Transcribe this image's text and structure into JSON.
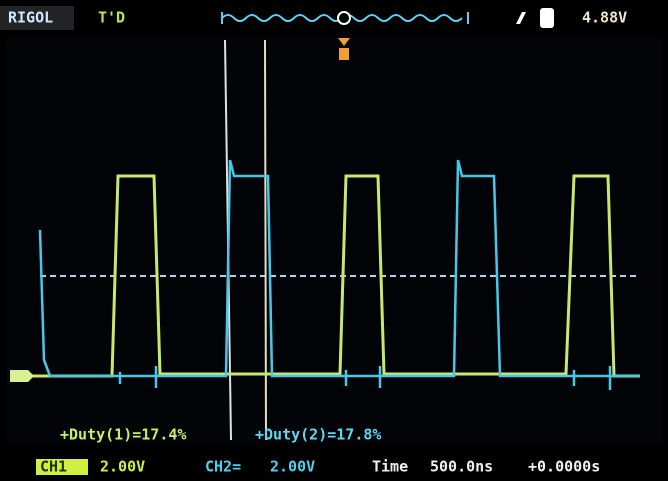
{
  "header": {
    "brand": "RIGOL",
    "status": "T'D",
    "trigger_level": "4.88V"
  },
  "measurements": [
    "+Duty(1)=17.4%",
    "+Duty(2)=17.8%"
  ],
  "footer": {
    "ch1_label": "CH1",
    "ch1_scale": "2.00V",
    "ch2_label": "CH2=",
    "ch2_scale": "2.00V",
    "time_label": "Time",
    "time_scale": "500.0ns",
    "time_offset": "+0.0000s"
  }
}
